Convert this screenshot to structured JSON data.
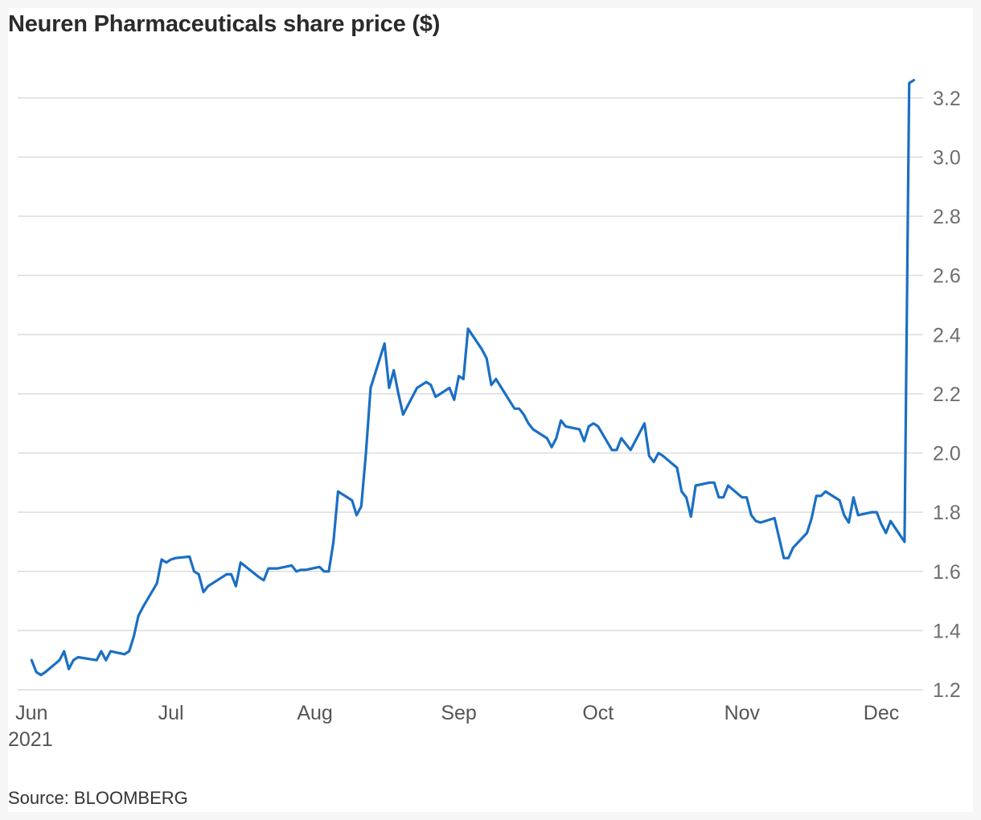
{
  "title": "Neuren Pharmaceuticals share price ($)",
  "source": "Source: BLOOMBERG",
  "chart_data": {
    "type": "line",
    "title": "Neuren Pharmaceuticals share price ($)",
    "xlabel": "",
    "ylabel": "",
    "y_axis_side": "right",
    "grid": "horizontal",
    "legend": "none",
    "line_color": "#1a6fc4",
    "ylim": [
      1.2,
      3.3
    ],
    "yticks": [
      1.2,
      1.4,
      1.6,
      1.8,
      2.0,
      2.2,
      2.4,
      2.6,
      2.8,
      3.0,
      3.2
    ],
    "ytick_labels": [
      "1.2",
      "1.4",
      "1.6",
      "1.8",
      "2.0",
      "2.2",
      "2.4",
      "2.6",
      "2.8",
      "3.0",
      "3.2"
    ],
    "xlim": [
      "2021-05-29",
      "2021-12-10"
    ],
    "xticks": [
      {
        "date": "2021-06-01",
        "label": "Jun",
        "sublabel": "2021"
      },
      {
        "date": "2021-07-01",
        "label": "Jul"
      },
      {
        "date": "2021-08-01",
        "label": "Aug"
      },
      {
        "date": "2021-09-01",
        "label": "Sep"
      },
      {
        "date": "2021-10-01",
        "label": "Oct"
      },
      {
        "date": "2021-11-01",
        "label": "Nov"
      },
      {
        "date": "2021-12-01",
        "label": "Dec"
      }
    ],
    "series": [
      {
        "points": [
          [
            "2021-06-01",
            1.3
          ],
          [
            "2021-06-02",
            1.26
          ],
          [
            "2021-06-03",
            1.25
          ],
          [
            "2021-06-04",
            1.26
          ],
          [
            "2021-06-07",
            1.3
          ],
          [
            "2021-06-08",
            1.33
          ],
          [
            "2021-06-09",
            1.27
          ],
          [
            "2021-06-10",
            1.3
          ],
          [
            "2021-06-11",
            1.31
          ],
          [
            "2021-06-15",
            1.3
          ],
          [
            "2021-06-16",
            1.33
          ],
          [
            "2021-06-17",
            1.3
          ],
          [
            "2021-06-18",
            1.33
          ],
          [
            "2021-06-21",
            1.32
          ],
          [
            "2021-06-22",
            1.33
          ],
          [
            "2021-06-23",
            1.38
          ],
          [
            "2021-06-24",
            1.45
          ],
          [
            "2021-06-25",
            1.48
          ],
          [
            "2021-06-28",
            1.56
          ],
          [
            "2021-06-29",
            1.64
          ],
          [
            "2021-06-30",
            1.63
          ],
          [
            "2021-07-01",
            1.64
          ],
          [
            "2021-07-02",
            1.645
          ],
          [
            "2021-07-05",
            1.65
          ],
          [
            "2021-07-06",
            1.6
          ],
          [
            "2021-07-07",
            1.59
          ],
          [
            "2021-07-08",
            1.53
          ],
          [
            "2021-07-09",
            1.55
          ],
          [
            "2021-07-13",
            1.59
          ],
          [
            "2021-07-14",
            1.59
          ],
          [
            "2021-07-15",
            1.55
          ],
          [
            "2021-07-16",
            1.63
          ],
          [
            "2021-07-20",
            1.58
          ],
          [
            "2021-07-21",
            1.57
          ],
          [
            "2021-07-22",
            1.61
          ],
          [
            "2021-07-23",
            1.61
          ],
          [
            "2021-07-24",
            1.61
          ],
          [
            "2021-07-27",
            1.62
          ],
          [
            "2021-07-28",
            1.6
          ],
          [
            "2021-07-29",
            1.605
          ],
          [
            "2021-07-30",
            1.605
          ],
          [
            "2021-08-02",
            1.615
          ],
          [
            "2021-08-03",
            1.6
          ],
          [
            "2021-08-04",
            1.6
          ],
          [
            "2021-08-05",
            1.7
          ],
          [
            "2021-08-06",
            1.87
          ],
          [
            "2021-08-09",
            1.84
          ],
          [
            "2021-08-10",
            1.79
          ],
          [
            "2021-08-11",
            1.82
          ],
          [
            "2021-08-12",
            2.0
          ],
          [
            "2021-08-13",
            2.22
          ],
          [
            "2021-08-16",
            2.37
          ],
          [
            "2021-08-17",
            2.22
          ],
          [
            "2021-08-18",
            2.28
          ],
          [
            "2021-08-19",
            2.2
          ],
          [
            "2021-08-20",
            2.13
          ],
          [
            "2021-08-23",
            2.22
          ],
          [
            "2021-08-24",
            2.23
          ],
          [
            "2021-08-25",
            2.24
          ],
          [
            "2021-08-26",
            2.23
          ],
          [
            "2021-08-27",
            2.19
          ],
          [
            "2021-08-30",
            2.22
          ],
          [
            "2021-08-31",
            2.18
          ],
          [
            "2021-09-01",
            2.26
          ],
          [
            "2021-09-02",
            2.25
          ],
          [
            "2021-09-03",
            2.42
          ],
          [
            "2021-09-06",
            2.35
          ],
          [
            "2021-09-07",
            2.32
          ],
          [
            "2021-09-08",
            2.23
          ],
          [
            "2021-09-09",
            2.25
          ],
          [
            "2021-09-13",
            2.15
          ],
          [
            "2021-09-14",
            2.15
          ],
          [
            "2021-09-15",
            2.13
          ],
          [
            "2021-09-16",
            2.1
          ],
          [
            "2021-09-17",
            2.08
          ],
          [
            "2021-09-20",
            2.05
          ],
          [
            "2021-09-21",
            2.02
          ],
          [
            "2021-09-22",
            2.05
          ],
          [
            "2021-09-23",
            2.11
          ],
          [
            "2021-09-24",
            2.09
          ],
          [
            "2021-09-27",
            2.08
          ],
          [
            "2021-09-28",
            2.04
          ],
          [
            "2021-09-29",
            2.09
          ],
          [
            "2021-09-30",
            2.1
          ],
          [
            "2021-10-01",
            2.09
          ],
          [
            "2021-10-04",
            2.01
          ],
          [
            "2021-10-05",
            2.01
          ],
          [
            "2021-10-06",
            2.05
          ],
          [
            "2021-10-08",
            2.01
          ],
          [
            "2021-10-11",
            2.1
          ],
          [
            "2021-10-12",
            1.99
          ],
          [
            "2021-10-13",
            1.97
          ],
          [
            "2021-10-14",
            2.0
          ],
          [
            "2021-10-15",
            1.99
          ],
          [
            "2021-10-18",
            1.95
          ],
          [
            "2021-10-19",
            1.87
          ],
          [
            "2021-10-20",
            1.85
          ],
          [
            "2021-10-21",
            1.785
          ],
          [
            "2021-10-22",
            1.89
          ],
          [
            "2021-10-25",
            1.9
          ],
          [
            "2021-10-26",
            1.9
          ],
          [
            "2021-10-27",
            1.85
          ],
          [
            "2021-10-28",
            1.85
          ],
          [
            "2021-10-29",
            1.89
          ],
          [
            "2021-11-01",
            1.85
          ],
          [
            "2021-11-02",
            1.85
          ],
          [
            "2021-11-03",
            1.79
          ],
          [
            "2021-11-04",
            1.77
          ],
          [
            "2021-11-05",
            1.765
          ],
          [
            "2021-11-08",
            1.78
          ],
          [
            "2021-11-10",
            1.645
          ],
          [
            "2021-11-11",
            1.645
          ],
          [
            "2021-11-12",
            1.68
          ],
          [
            "2021-11-15",
            1.73
          ],
          [
            "2021-11-16",
            1.78
          ],
          [
            "2021-11-17",
            1.855
          ],
          [
            "2021-11-18",
            1.855
          ],
          [
            "2021-11-19",
            1.87
          ],
          [
            "2021-11-22",
            1.84
          ],
          [
            "2021-11-23",
            1.79
          ],
          [
            "2021-11-24",
            1.765
          ],
          [
            "2021-11-25",
            1.85
          ],
          [
            "2021-11-26",
            1.79
          ],
          [
            "2021-11-29",
            1.8
          ],
          [
            "2021-11-30",
            1.8
          ],
          [
            "2021-12-01",
            1.76
          ],
          [
            "2021-12-02",
            1.73
          ],
          [
            "2021-12-03",
            1.77
          ],
          [
            "2021-12-06",
            1.7
          ],
          [
            "2021-12-07",
            3.25
          ],
          [
            "2021-12-08",
            3.26
          ]
        ]
      }
    ]
  }
}
